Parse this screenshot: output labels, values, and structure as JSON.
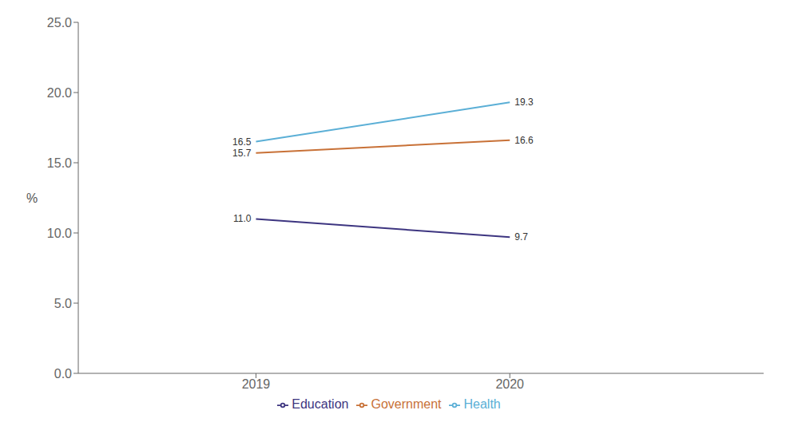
{
  "chart_data": {
    "type": "line",
    "ylabel": "%",
    "x": [
      2019,
      2020
    ],
    "xlim": [
      2018.3,
      2021.0
    ],
    "xticks": [
      2019,
      2020
    ],
    "ylim": [
      0,
      25.0
    ],
    "yticks": [
      {
        "value": 0,
        "label": "0.0"
      },
      {
        "value": 5,
        "label": "5.0"
      },
      {
        "value": 10,
        "label": "10.0"
      },
      {
        "value": 15,
        "label": "15.0"
      },
      {
        "value": 20,
        "label": "20.0"
      },
      {
        "value": 25,
        "label": "25.0"
      }
    ],
    "series": [
      {
        "name": "Education",
        "color": "#3D3580",
        "values": [
          11.0,
          9.7
        ],
        "value_labels": [
          "11.0",
          "9.7"
        ]
      },
      {
        "name": "Government",
        "color": "#C87137",
        "values": [
          15.7,
          16.6
        ],
        "value_labels": [
          "15.7",
          "16.6"
        ]
      },
      {
        "name": "Health",
        "color": "#5BAFD6",
        "values": [
          16.5,
          19.3
        ],
        "value_labels": [
          "16.5",
          "19.3"
        ]
      }
    ],
    "data_labels": true,
    "grid": false,
    "legend": "bottom"
  }
}
